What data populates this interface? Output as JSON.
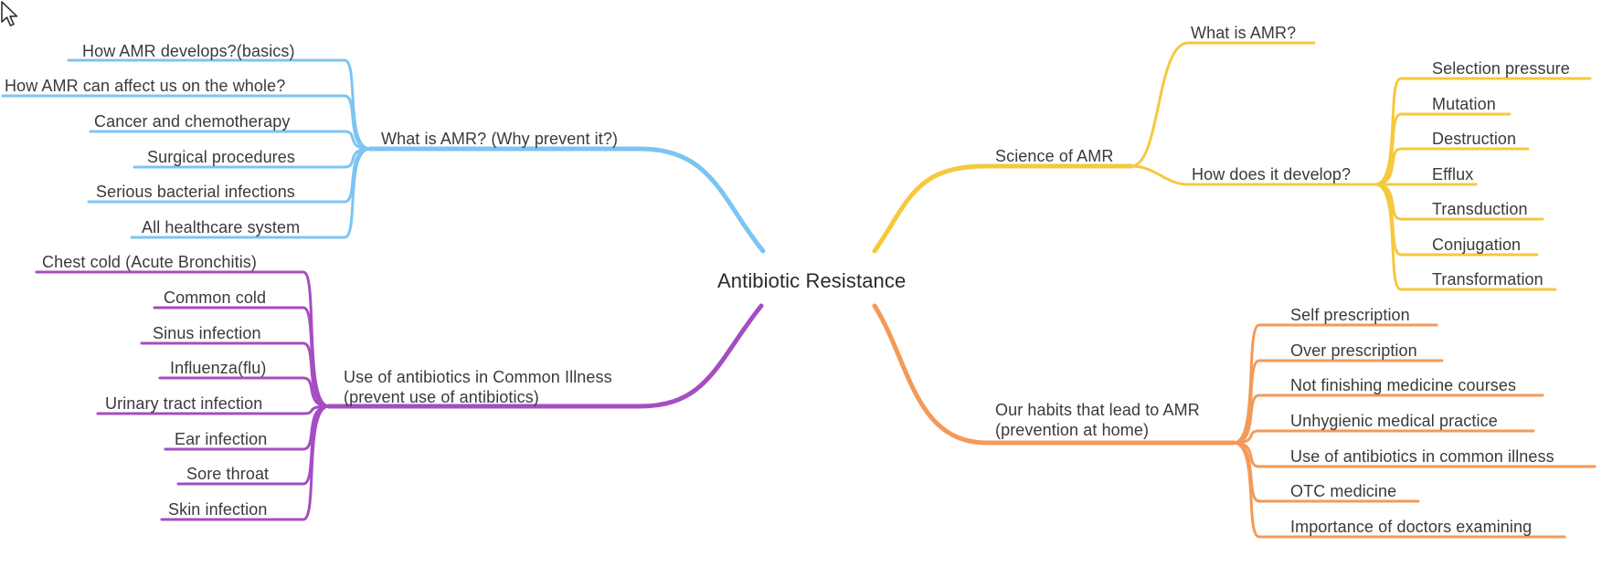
{
  "title": "Antibiotic Resistance",
  "colors": {
    "blue": "#7cc4f2",
    "purple": "#a54dc1",
    "yellow": "#f5c93d",
    "orange": "#f39a58",
    "text": "#3a3a3a"
  },
  "branches": {
    "what_is_amr": {
      "label": "What is AMR? (Why prevent it?)",
      "color": "#7cc4f2",
      "children": [
        "How AMR develops?(basics)",
        "How AMR can affect us on the whole?",
        "Cancer and chemotherapy",
        "Surgical procedures",
        "Serious bacterial infections",
        "All healthcare system"
      ]
    },
    "common_illness": {
      "label_line1": "Use of antibiotics in Common Illness",
      "label_line2": "(prevent use of antibiotics)",
      "color": "#a54dc1",
      "children": [
        "Chest cold (Acute Bronchitis)",
        "Common cold",
        "Sinus infection",
        "Influenza(flu)",
        "Urinary tract infection",
        "Ear infection",
        "Sore throat",
        "Skin infection"
      ]
    },
    "science": {
      "label": "Science of AMR",
      "color": "#f5c93d",
      "sub_what": "What is AMR?",
      "sub_how": "How does it develop?",
      "how_children": [
        "Selection pressure",
        "Mutation",
        "Destruction",
        "Efflux",
        "Transduction",
        "Conjugation",
        "Transformation"
      ]
    },
    "habits": {
      "label_line1": "Our habits that lead to AMR",
      "label_line2": "(prevention at home)",
      "color": "#f39a58",
      "children": [
        "Self prescription",
        "Over prescription",
        "Not finishing medicine courses",
        "Unhygienic medical practice",
        "Use of antibiotics in common illness",
        "OTC medicine",
        "Importance of doctors examining"
      ]
    }
  }
}
